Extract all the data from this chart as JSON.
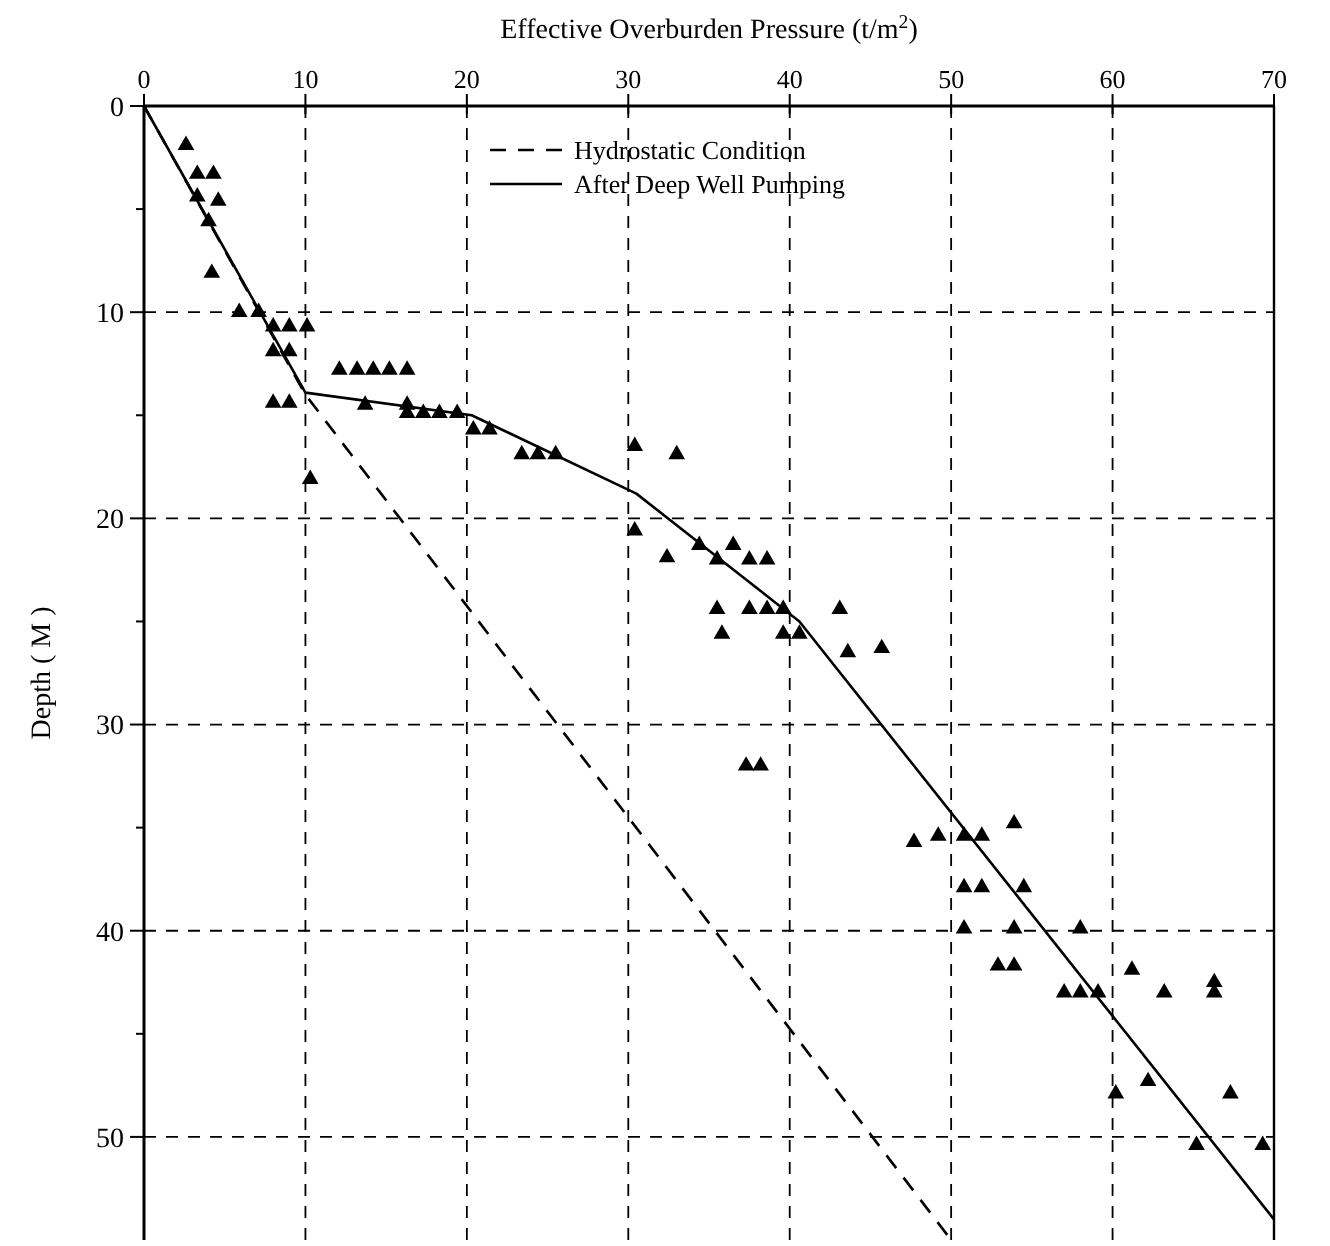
{
  "chart_data": {
    "type": "scatter",
    "xlabel": "Effective Overburden Pressure (t/m$^{2}$)",
    "ylabel": "Depth ( M )",
    "xlim": [
      0,
      70
    ],
    "xticks": [
      0,
      10,
      20,
      30,
      40,
      50,
      60,
      70
    ],
    "ylim": [
      55,
      0
    ],
    "yticks": [
      0,
      {
        "value": 5,
        "label": null
      },
      10,
      {
        "value": 15,
        "label": null
      },
      20,
      {
        "value": 25,
        "label": null
      },
      30,
      {
        "value": 35,
        "label": null
      },
      40,
      {
        "value": 45,
        "label": null
      },
      50
    ],
    "grid": true,
    "legend": "top",
    "series": [
      {
        "color": "#000000",
        "marker": "triangle",
        "x": [
          2.6,
          3.3,
          4.3,
          3.3,
          4.6,
          4.0,
          4.2,
          5.9,
          7.1,
          8.0,
          9.0,
          10.1,
          8.0,
          9.0,
          12.1,
          13.2,
          14.2,
          15.2,
          16.3,
          8.0,
          9.0,
          13.7,
          16.3,
          16.3,
          17.3,
          18.3,
          19.4,
          20.4,
          21.4,
          10.3,
          23.4,
          24.4,
          25.5,
          30.4,
          33.0,
          30.4,
          32.4,
          34.4,
          36.5,
          35.5,
          37.5,
          38.6,
          35.5,
          37.5,
          38.6,
          39.6,
          43.1,
          35.8,
          39.6,
          40.6,
          43.6,
          45.7,
          37.3,
          38.2,
          47.7,
          49.2,
          50.8,
          51.9,
          53.9,
          50.8,
          51.9,
          54.5,
          50.8,
          53.9,
          58.0,
          52.9,
          53.9,
          61.2,
          57.0,
          58.0,
          59.1,
          63.2,
          66.3,
          66.3,
          60.2,
          62.2,
          67.3,
          65.2,
          69.3
        ],
        "values": [
          1.9,
          3.3,
          3.3,
          4.4,
          4.6,
          5.6,
          8.1,
          10.0,
          10.0,
          10.7,
          10.7,
          10.7,
          11.9,
          11.9,
          12.8,
          12.8,
          12.8,
          12.8,
          12.8,
          14.4,
          14.4,
          14.5,
          14.5,
          14.9,
          14.9,
          14.9,
          14.9,
          15.7,
          15.7,
          18.1,
          16.9,
          16.9,
          16.9,
          16.5,
          16.9,
          20.6,
          21.9,
          21.3,
          21.3,
          22.0,
          22.0,
          22.0,
          24.4,
          24.4,
          24.4,
          24.4,
          24.4,
          25.6,
          25.6,
          25.6,
          26.5,
          26.3,
          32.0,
          32.0,
          35.7,
          35.4,
          35.4,
          35.4,
          34.8,
          37.9,
          37.9,
          37.9,
          39.9,
          39.9,
          39.9,
          41.7,
          41.7,
          41.9,
          43.0,
          43.0,
          43.0,
          43.0,
          42.5,
          43.0,
          47.9,
          47.3,
          47.9,
          50.4,
          50.4
        ]
      },
      {
        "type": "line",
        "name": "Hydrostatic Condition",
        "color": "#000000",
        "line_style": "dashed",
        "marker": "none",
        "x": [
          0,
          10,
          50
        ],
        "values": [
          0,
          14,
          55
        ]
      },
      {
        "type": "line",
        "name": "After Deep Well Pumping",
        "color": "#000000",
        "line_style": "solid",
        "marker": "none",
        "x": [
          0,
          10,
          20.3,
          30.5,
          40.6,
          70
        ],
        "values": [
          0,
          13.9,
          15.0,
          18.8,
          25.0,
          54.0
        ]
      }
    ]
  }
}
